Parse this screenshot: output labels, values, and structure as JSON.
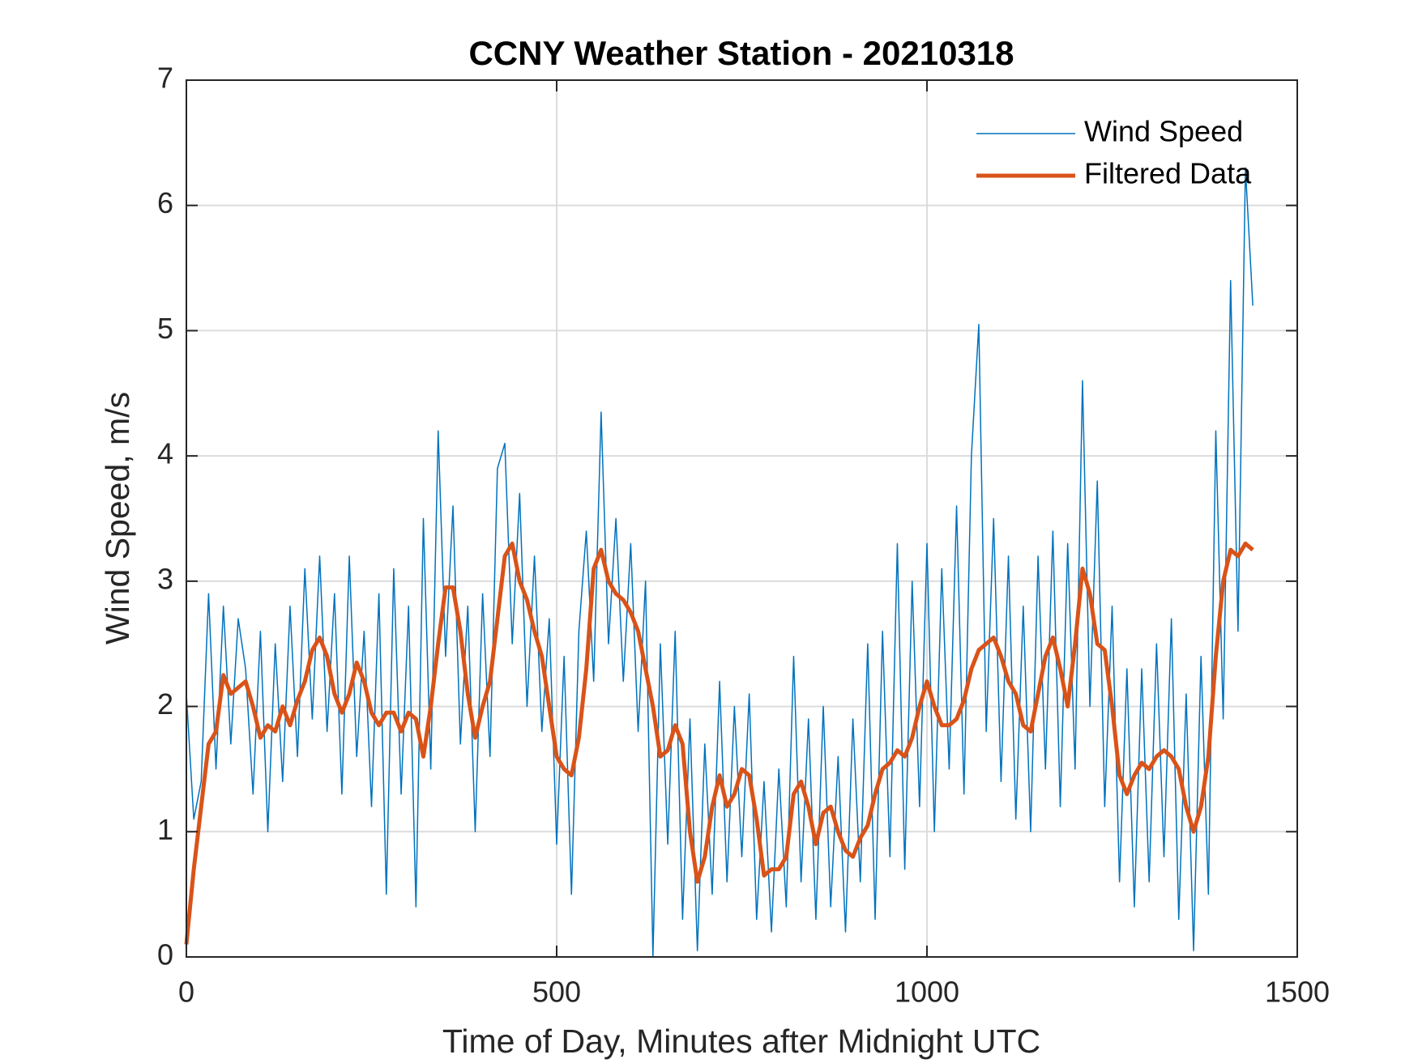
{
  "chart_data": {
    "type": "line",
    "title": "CCNY Weather Station - 20210318",
    "x_label": "Time of Day, Minutes after Midnight UTC",
    "y_label": "Wind Speed, m/s",
    "x": [
      0,
      10,
      20,
      30,
      40,
      50,
      60,
      70,
      80,
      90,
      100,
      110,
      120,
      130,
      140,
      150,
      160,
      170,
      180,
      190,
      200,
      210,
      220,
      230,
      240,
      250,
      260,
      270,
      280,
      290,
      300,
      310,
      320,
      330,
      340,
      350,
      360,
      370,
      380,
      390,
      400,
      410,
      420,
      430,
      440,
      450,
      460,
      470,
      480,
      490,
      500,
      510,
      520,
      530,
      540,
      550,
      560,
      570,
      580,
      590,
      600,
      610,
      620,
      630,
      640,
      650,
      660,
      670,
      680,
      690,
      700,
      710,
      720,
      730,
      740,
      750,
      760,
      770,
      780,
      790,
      800,
      810,
      820,
      830,
      840,
      850,
      860,
      870,
      880,
      890,
      900,
      910,
      920,
      930,
      940,
      950,
      960,
      970,
      980,
      990,
      1000,
      1010,
      1020,
      1030,
      1040,
      1050,
      1060,
      1070,
      1080,
      1090,
      1100,
      1110,
      1120,
      1130,
      1140,
      1150,
      1160,
      1170,
      1180,
      1190,
      1200,
      1210,
      1220,
      1230,
      1240,
      1250,
      1260,
      1270,
      1280,
      1290,
      1300,
      1310,
      1320,
      1330,
      1340,
      1350,
      1360,
      1370,
      1380,
      1390,
      1400,
      1410,
      1420,
      1430,
      1440
    ],
    "series": [
      {
        "name": "Wind Speed",
        "color": "#0072bd",
        "width": 1.5,
        "values": [
          2.1,
          1.1,
          1.4,
          2.9,
          1.5,
          2.8,
          1.7,
          2.7,
          2.3,
          1.3,
          2.6,
          1.0,
          2.5,
          1.4,
          2.8,
          1.6,
          3.1,
          1.9,
          3.2,
          1.8,
          2.9,
          1.3,
          3.2,
          1.6,
          2.6,
          1.2,
          2.9,
          0.5,
          3.1,
          1.3,
          2.8,
          0.4,
          3.5,
          1.5,
          4.2,
          2.4,
          3.6,
          1.7,
          2.8,
          1.0,
          2.9,
          1.6,
          3.9,
          4.1,
          2.5,
          3.7,
          2.0,
          3.2,
          1.8,
          2.7,
          0.9,
          2.4,
          0.5,
          2.6,
          3.4,
          2.2,
          4.35,
          2.5,
          3.5,
          2.2,
          3.3,
          1.8,
          3.0,
          0.0,
          2.5,
          0.9,
          2.6,
          0.3,
          1.9,
          0.05,
          1.7,
          0.5,
          2.2,
          0.6,
          2.0,
          0.8,
          2.1,
          0.3,
          1.4,
          0.2,
          1.5,
          0.4,
          2.4,
          0.6,
          1.9,
          0.3,
          2.0,
          0.4,
          1.6,
          0.2,
          1.9,
          0.6,
          2.5,
          0.3,
          2.6,
          0.8,
          3.3,
          0.7,
          3.0,
          1.2,
          3.3,
          1.0,
          3.1,
          1.5,
          3.6,
          1.3,
          4.0,
          5.05,
          1.8,
          3.5,
          1.4,
          3.2,
          1.1,
          2.8,
          1.0,
          3.2,
          1.5,
          3.4,
          1.2,
          3.3,
          1.5,
          4.6,
          2.0,
          3.8,
          1.2,
          2.8,
          0.6,
          2.3,
          0.4,
          2.3,
          0.6,
          2.5,
          0.8,
          2.7,
          0.3,
          2.1,
          0.05,
          2.4,
          0.5,
          4.2,
          1.9,
          5.4,
          2.6,
          6.3,
          5.2
        ]
      },
      {
        "name": "Filtered Data",
        "color": "#d95319",
        "width": 5,
        "values": [
          0.1,
          0.7,
          1.2,
          1.7,
          1.8,
          2.25,
          2.1,
          2.15,
          2.2,
          2.0,
          1.75,
          1.85,
          1.8,
          2.0,
          1.85,
          2.05,
          2.2,
          2.45,
          2.55,
          2.4,
          2.1,
          1.95,
          2.1,
          2.35,
          2.2,
          1.95,
          1.85,
          1.95,
          1.95,
          1.8,
          1.95,
          1.9,
          1.6,
          2.0,
          2.5,
          2.95,
          2.95,
          2.6,
          2.1,
          1.75,
          2.0,
          2.2,
          2.7,
          3.2,
          3.3,
          3.0,
          2.85,
          2.6,
          2.4,
          2.0,
          1.6,
          1.5,
          1.45,
          1.75,
          2.3,
          3.1,
          3.25,
          3.0,
          2.9,
          2.85,
          2.75,
          2.6,
          2.3,
          2.0,
          1.6,
          1.65,
          1.85,
          1.7,
          1.0,
          0.6,
          0.8,
          1.2,
          1.45,
          1.2,
          1.3,
          1.5,
          1.45,
          1.1,
          0.65,
          0.7,
          0.7,
          0.8,
          1.3,
          1.4,
          1.2,
          0.9,
          1.15,
          1.2,
          1.0,
          0.85,
          0.8,
          0.95,
          1.05,
          1.3,
          1.5,
          1.55,
          1.65,
          1.6,
          1.75,
          2.0,
          2.2,
          2.0,
          1.85,
          1.85,
          1.9,
          2.05,
          2.3,
          2.45,
          2.5,
          2.55,
          2.4,
          2.2,
          2.1,
          1.85,
          1.8,
          2.1,
          2.4,
          2.55,
          2.3,
          2.0,
          2.5,
          3.1,
          2.9,
          2.5,
          2.45,
          2.0,
          1.45,
          1.3,
          1.45,
          1.55,
          1.5,
          1.6,
          1.65,
          1.6,
          1.5,
          1.2,
          1.0,
          1.2,
          1.6,
          2.4,
          3.0,
          3.25,
          3.2,
          3.3,
          3.25
        ]
      }
    ],
    "xlim": [
      0,
      1500
    ],
    "xticks": [
      0,
      500,
      1000,
      1500
    ],
    "ylim": [
      0,
      7
    ],
    "yticks": [
      0,
      1,
      2,
      3,
      4,
      5,
      6,
      7
    ],
    "grid": true,
    "legend": "top-right"
  }
}
